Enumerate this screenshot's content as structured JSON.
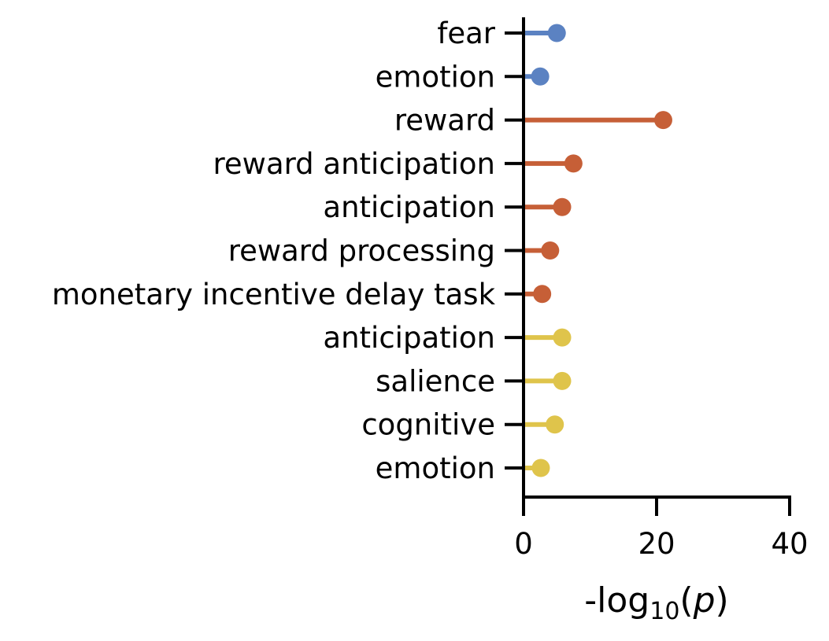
{
  "chart_data": {
    "type": "lollipop",
    "title": "",
    "xlabel": {
      "prefix": "-log",
      "subscript": "10",
      "open": "(",
      "var": "p",
      "close": ")"
    },
    "ylabel": "",
    "xlim": [
      0,
      40
    ],
    "xticks": [
      "0",
      "20",
      "40"
    ],
    "grid": false,
    "colors": {
      "blue": "#5b82c2",
      "orange": "#c65f37",
      "yellow": "#dfc44b"
    },
    "points": [
      {
        "label": "fear",
        "value": 5.0,
        "group": "blue"
      },
      {
        "label": "emotion",
        "value": 2.5,
        "group": "blue"
      },
      {
        "label": "reward",
        "value": 21.0,
        "group": "orange"
      },
      {
        "label": "reward anticipation",
        "value": 7.5,
        "group": "orange"
      },
      {
        "label": "anticipation",
        "value": 5.8,
        "group": "orange"
      },
      {
        "label": "reward processing",
        "value": 4.0,
        "group": "orange"
      },
      {
        "label": "monetary incentive delay task",
        "value": 2.8,
        "group": "orange"
      },
      {
        "label": "anticipation",
        "value": 5.8,
        "group": "yellow"
      },
      {
        "label": "salience",
        "value": 5.8,
        "group": "yellow"
      },
      {
        "label": "cognitive",
        "value": 4.7,
        "group": "yellow"
      },
      {
        "label": "emotion",
        "value": 2.6,
        "group": "yellow"
      }
    ]
  }
}
